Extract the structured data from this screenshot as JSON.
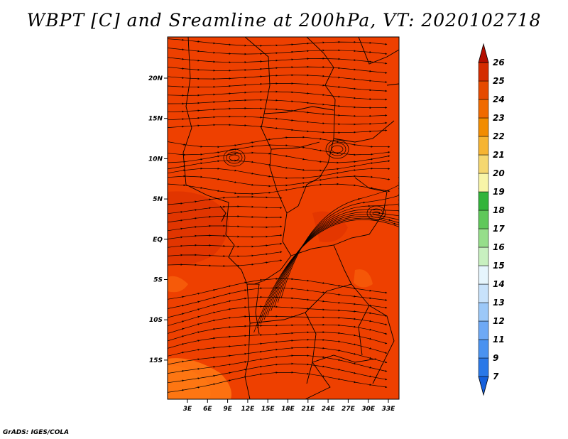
{
  "title": "WBPT [C] and Sreamline at 200hPa, VT: 2020102718",
  "footer": "GrADS: IGES/COLA",
  "map": {
    "lat_labels": [
      "20N",
      "15N",
      "10N",
      "5N",
      "EQ",
      "5S",
      "10S",
      "15S"
    ],
    "lon_labels": [
      "3E",
      "6E",
      "9E",
      "12E",
      "15E",
      "18E",
      "21E",
      "24E",
      "27E",
      "30E",
      "33E"
    ],
    "field_color": "#ee4000",
    "warm_patch_color": "#ff7a14",
    "dark_patch_color": "#d42a00"
  },
  "colorbar": {
    "labels": [
      "7",
      "9",
      "11",
      "12",
      "13",
      "14",
      "15",
      "16",
      "17",
      "18",
      "19",
      "20",
      "21",
      "22",
      "23",
      "24",
      "25",
      "26"
    ],
    "colors": [
      "#1560dc",
      "#2a78e8",
      "#4a92f0",
      "#6ea9f5",
      "#9cc8f8",
      "#c8e2fb",
      "#e6f5fd",
      "#c8f0c0",
      "#96de8a",
      "#5fc85a",
      "#32b43a",
      "#f8f5a8",
      "#f5d770",
      "#f6b432",
      "#f28c00",
      "#f06a00",
      "#e64a00",
      "#d42c00",
      "#b40e00"
    ]
  }
}
